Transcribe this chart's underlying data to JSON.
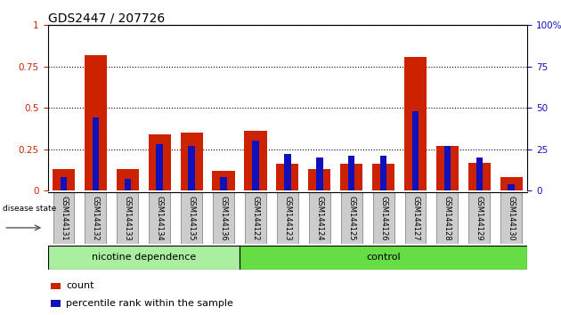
{
  "title": "GDS2447 / 207726",
  "categories": [
    "GSM144131",
    "GSM144132",
    "GSM144133",
    "GSM144134",
    "GSM144135",
    "GSM144136",
    "GSM144122",
    "GSM144123",
    "GSM144124",
    "GSM144125",
    "GSM144126",
    "GSM144127",
    "GSM144128",
    "GSM144129",
    "GSM144130"
  ],
  "red_values": [
    0.13,
    0.82,
    0.13,
    0.34,
    0.35,
    0.12,
    0.36,
    0.16,
    0.13,
    0.16,
    0.16,
    0.81,
    0.27,
    0.17,
    0.08
  ],
  "blue_values": [
    0.08,
    0.44,
    0.07,
    0.28,
    0.27,
    0.08,
    0.3,
    0.22,
    0.2,
    0.21,
    0.21,
    0.48,
    0.27,
    0.2,
    0.04
  ],
  "group1_label": "nicotine dependence",
  "group2_label": "control",
  "group1_count": 6,
  "group2_count": 9,
  "ylim_left": [
    0,
    1
  ],
  "ylim_right": [
    0,
    100
  ],
  "yticks_left": [
    0,
    0.25,
    0.5,
    0.75,
    1.0
  ],
  "ytick_labels_left": [
    "0",
    "0.25",
    "0.5",
    "0.75",
    "1"
  ],
  "yticks_right": [
    0,
    25,
    50,
    75,
    100
  ],
  "ytick_labels_right": [
    "0",
    "25",
    "50",
    "75",
    "100%"
  ],
  "red_color": "#cc2200",
  "blue_color": "#1111bb",
  "group1_bg": "#aaeea0",
  "group2_bg": "#66dd44",
  "bar_bg": "#cccccc",
  "bar_edge": "#888888",
  "legend_count": "count",
  "legend_pct": "percentile rank within the sample",
  "disease_state_label": "disease state",
  "fig_bg": "#ffffff"
}
